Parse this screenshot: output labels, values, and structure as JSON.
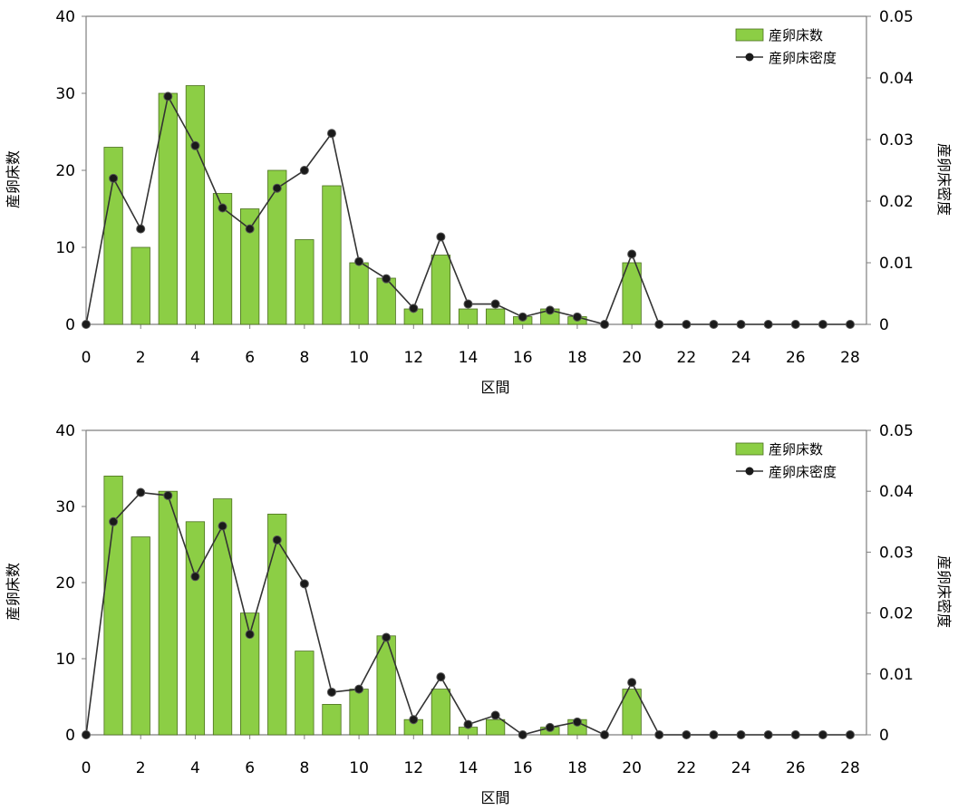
{
  "chart_data": [
    {
      "type": "bar+line",
      "x": [
        0,
        1,
        2,
        3,
        4,
        5,
        6,
        7,
        8,
        9,
        10,
        11,
        12,
        13,
        14,
        15,
        16,
        17,
        18,
        19,
        20,
        21,
        22,
        23,
        24,
        25,
        26,
        27,
        28
      ],
      "x_ticks": [
        0,
        2,
        4,
        6,
        8,
        10,
        12,
        14,
        16,
        18,
        20,
        22,
        24,
        26,
        28
      ],
      "xlabel": "区間",
      "ylabel_left": "産卵床数",
      "ylabel_right": "産卵床密度",
      "ylim_left": [
        0,
        40
      ],
      "ylim_right": [
        0,
        0.05
      ],
      "y_ticks_left": [
        "0",
        "10",
        "20",
        "30",
        "40"
      ],
      "y_ticks_right": [
        "0",
        "0.01",
        "0.02",
        "0.03",
        "0.04",
        "0.05"
      ],
      "legend_position": "top-right",
      "series": [
        {
          "name": "産卵床数",
          "kind": "bar",
          "axis": "left",
          "color": "#8cce45",
          "values": [
            0,
            23,
            10,
            30,
            31,
            17,
            15,
            20,
            11,
            18,
            8,
            6,
            2,
            9,
            2,
            2,
            1,
            2,
            1,
            0,
            8,
            0,
            0,
            0,
            0,
            0,
            0,
            0,
            0
          ]
        },
        {
          "name": "産卵床密度",
          "kind": "line",
          "axis": "right",
          "color": "#333333",
          "values": [
            0,
            0.0237,
            0.0155,
            0.037,
            0.029,
            0.0189,
            0.0155,
            0.0221,
            0.025,
            0.031,
            0.0102,
            0.0074,
            0.0026,
            0.0142,
            0.0033,
            0.0033,
            0.0012,
            0.0023,
            0.0012,
            0,
            0.0114,
            0,
            0,
            0,
            0,
            0,
            0,
            0,
            0
          ]
        }
      ]
    },
    {
      "type": "bar+line",
      "x": [
        0,
        1,
        2,
        3,
        4,
        5,
        6,
        7,
        8,
        9,
        10,
        11,
        12,
        13,
        14,
        15,
        16,
        17,
        18,
        19,
        20,
        21,
        22,
        23,
        24,
        25,
        26,
        27,
        28
      ],
      "x_ticks": [
        0,
        2,
        4,
        6,
        8,
        10,
        12,
        14,
        16,
        18,
        20,
        22,
        24,
        26,
        28
      ],
      "xlabel": "区間",
      "ylabel_left": "産卵床数",
      "ylabel_right": "産卵床密度",
      "ylim_left": [
        0,
        40
      ],
      "ylim_right": [
        0,
        0.05
      ],
      "y_ticks_left": [
        "0",
        "10",
        "20",
        "30",
        "40"
      ],
      "y_ticks_right": [
        "0",
        "0.01",
        "0.02",
        "0.03",
        "0.04",
        "0.05"
      ],
      "legend_position": "top-right",
      "series": [
        {
          "name": "産卵床数",
          "kind": "bar",
          "axis": "left",
          "color": "#8cce45",
          "values": [
            0,
            34,
            26,
            32,
            28,
            31,
            16,
            29,
            11,
            4,
            6,
            13,
            2,
            6,
            1,
            2,
            0,
            1,
            2,
            0,
            6,
            0,
            0,
            0,
            0,
            0,
            0,
            0,
            0
          ]
        },
        {
          "name": "産卵床密度",
          "kind": "line",
          "axis": "right",
          "color": "#333333",
          "values": [
            0,
            0.035,
            0.0398,
            0.0393,
            0.026,
            0.0343,
            0.0165,
            0.032,
            0.0248,
            0.007,
            0.0075,
            0.016,
            0.0025,
            0.0095,
            0.0017,
            0.0032,
            0,
            0.0012,
            0.0021,
            0,
            0.0086,
            0,
            0,
            0,
            0,
            0,
            0,
            0,
            0
          ]
        }
      ]
    }
  ]
}
